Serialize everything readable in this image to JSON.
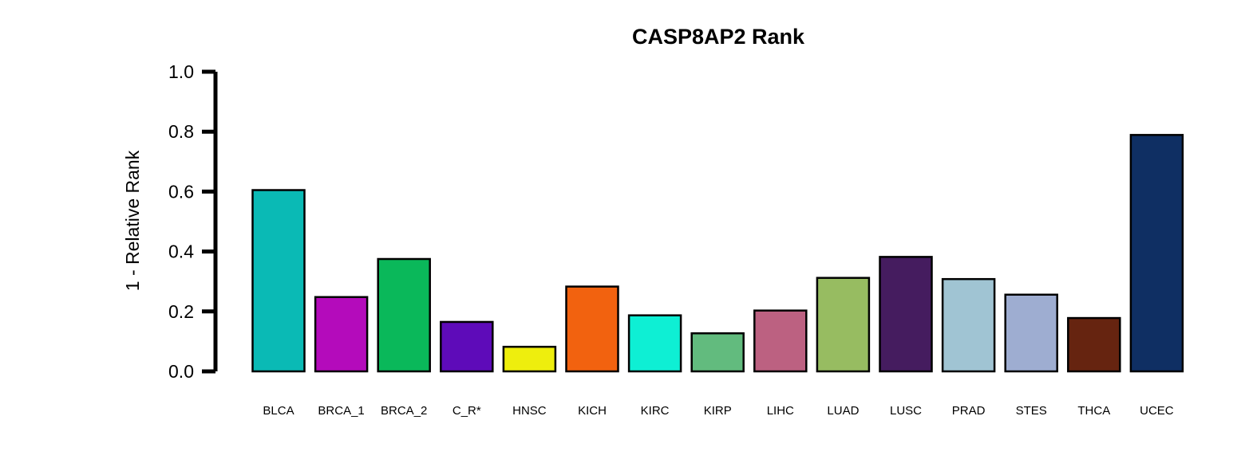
{
  "chart_data": {
    "type": "bar",
    "title": "CASP8AP2 Rank",
    "xlabel": "",
    "ylabel": "1 - Relative Rank",
    "ylim": [
      0,
      1
    ],
    "yticks": [
      "0.0",
      "0.2",
      "0.4",
      "0.6",
      "0.8",
      "1.0"
    ],
    "grid": false,
    "categories": [
      "BLCA",
      "BRCA_1",
      "BRCA_2",
      "C_R*",
      "HNSC",
      "KICH",
      "KIRC",
      "KIRP",
      "LIHC",
      "LUAD",
      "LUSC",
      "PRAD",
      "STES",
      "THCA",
      "UCEC"
    ],
    "values": [
      0.605,
      0.248,
      0.375,
      0.165,
      0.082,
      0.283,
      0.187,
      0.127,
      0.203,
      0.312,
      0.382,
      0.308,
      0.256,
      0.178,
      0.789
    ],
    "colors": [
      "#0abab5",
      "#b40bbb",
      "#0ab85a",
      "#5e0bb9",
      "#eeee0d",
      "#f2620f",
      "#0eefd4",
      "#62bb7e",
      "#bc6181",
      "#97bc61",
      "#451c5f",
      "#a0c4d3",
      "#9eadd1",
      "#662410",
      "#0f2f63"
    ]
  }
}
